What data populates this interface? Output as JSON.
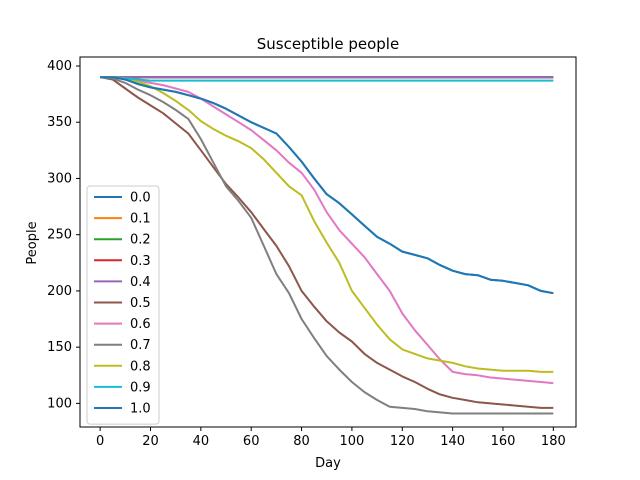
{
  "chart_data": {
    "type": "line",
    "title": "Susceptible people",
    "xlabel": "Day",
    "ylabel": "People",
    "xlim": [
      -8,
      189
    ],
    "ylim": [
      79,
      408
    ],
    "xticks": [
      0,
      20,
      40,
      60,
      80,
      100,
      120,
      140,
      160,
      180
    ],
    "yticks": [
      100,
      150,
      200,
      250,
      300,
      350,
      400
    ],
    "grid": false,
    "legend_position": "left",
    "series": [
      {
        "name": "0.0",
        "color": "#1f77b4",
        "x": [
          0,
          5,
          10,
          15,
          20,
          25,
          30,
          35,
          40,
          45,
          50,
          55,
          60,
          65,
          70,
          75,
          80,
          85,
          90,
          95,
          100,
          105,
          110,
          115,
          120,
          125,
          130,
          135,
          140,
          145,
          150,
          155,
          160,
          165,
          170,
          175,
          180
        ],
        "y": [
          390,
          390,
          388,
          384,
          381,
          379,
          377,
          374,
          371,
          367,
          362,
          356,
          350,
          345,
          340,
          328,
          315,
          300,
          286,
          278,
          268,
          258,
          248,
          242,
          235,
          232,
          229,
          223,
          218,
          215,
          214,
          210,
          209,
          207,
          205,
          200,
          198
        ]
      },
      {
        "name": "0.1",
        "color": "#ff7f0e",
        "x": [
          0,
          180
        ],
        "y": [
          390,
          390
        ]
      },
      {
        "name": "0.2",
        "color": "#2ca02c",
        "x": [
          0,
          180
        ],
        "y": [
          390,
          390
        ]
      },
      {
        "name": "0.3",
        "color": "#d62728",
        "x": [
          0,
          180
        ],
        "y": [
          390,
          390
        ]
      },
      {
        "name": "0.4",
        "color": "#9467bd",
        "x": [
          0,
          180
        ],
        "y": [
          390,
          390
        ]
      },
      {
        "name": "0.5",
        "color": "#8c564b",
        "x": [
          0,
          5,
          10,
          15,
          20,
          25,
          30,
          35,
          40,
          45,
          50,
          55,
          60,
          65,
          70,
          75,
          80,
          85,
          90,
          95,
          100,
          105,
          110,
          115,
          120,
          125,
          130,
          135,
          140,
          145,
          150,
          155,
          160,
          165,
          170,
          175,
          180
        ],
        "y": [
          390,
          388,
          380,
          372,
          365,
          358,
          349,
          340,
          325,
          310,
          295,
          283,
          270,
          255,
          240,
          222,
          200,
          186,
          173,
          163,
          155,
          144,
          136,
          130,
          124,
          119,
          113,
          108,
          105,
          103,
          101,
          100,
          99,
          98,
          97,
          96,
          96
        ]
      },
      {
        "name": "0.6",
        "color": "#e377c2",
        "x": [
          0,
          5,
          10,
          15,
          20,
          25,
          30,
          35,
          40,
          45,
          50,
          55,
          60,
          65,
          70,
          75,
          80,
          85,
          90,
          95,
          100,
          105,
          110,
          115,
          120,
          125,
          130,
          135,
          140,
          145,
          150,
          155,
          160,
          165,
          170,
          175,
          180
        ],
        "y": [
          390,
          390,
          389,
          387,
          385,
          383,
          380,
          377,
          371,
          364,
          357,
          350,
          343,
          334,
          325,
          314,
          305,
          290,
          270,
          254,
          242,
          230,
          215,
          200,
          180,
          165,
          152,
          139,
          128,
          126,
          125,
          123,
          122,
          121,
          120,
          119,
          118
        ]
      },
      {
        "name": "0.7",
        "color": "#7f7f7f",
        "x": [
          0,
          5,
          10,
          15,
          20,
          25,
          30,
          35,
          40,
          45,
          50,
          55,
          60,
          65,
          70,
          75,
          80,
          85,
          90,
          95,
          100,
          105,
          110,
          115,
          120,
          125,
          130,
          135,
          140,
          145,
          150,
          155,
          160,
          165,
          170,
          175,
          180
        ],
        "y": [
          390,
          389,
          385,
          379,
          374,
          368,
          361,
          353,
          335,
          314,
          293,
          280,
          265,
          240,
          215,
          198,
          175,
          158,
          142,
          130,
          119,
          110,
          103,
          97,
          96,
          95,
          93,
          92,
          91,
          91,
          91,
          91,
          91,
          91,
          91,
          91,
          91
        ]
      },
      {
        "name": "0.8",
        "color": "#bcbd22",
        "x": [
          0,
          5,
          10,
          15,
          20,
          25,
          30,
          35,
          40,
          45,
          50,
          55,
          60,
          65,
          70,
          75,
          80,
          85,
          90,
          95,
          100,
          105,
          110,
          115,
          120,
          125,
          130,
          135,
          140,
          145,
          150,
          155,
          160,
          165,
          170,
          175,
          180
        ],
        "y": [
          390,
          390,
          389,
          386,
          382,
          376,
          369,
          361,
          351,
          344,
          338,
          333,
          327,
          317,
          305,
          293,
          285,
          262,
          243,
          225,
          200,
          185,
          170,
          157,
          148,
          144,
          140,
          138,
          136,
          133,
          131,
          130,
          129,
          129,
          129,
          128,
          128
        ]
      },
      {
        "name": "0.9",
        "color": "#17becf",
        "x": [
          0,
          5,
          10,
          15,
          20,
          180
        ],
        "y": [
          390,
          390,
          389,
          388,
          387,
          387
        ]
      },
      {
        "name": "1.0",
        "color": "#1f77b4",
        "x": [
          0,
          5,
          10,
          15,
          20,
          25,
          30,
          35,
          40,
          45,
          50,
          55,
          60,
          65,
          70,
          75,
          80,
          85,
          90,
          95,
          100,
          105,
          110,
          115,
          120,
          125,
          130,
          135,
          140,
          145,
          150,
          155,
          160,
          165,
          170,
          175,
          180
        ],
        "y": [
          390,
          390,
          388,
          384,
          381,
          379,
          377,
          374,
          371,
          367,
          362,
          356,
          350,
          345,
          340,
          328,
          315,
          300,
          286,
          278,
          268,
          258,
          248,
          242,
          235,
          232,
          229,
          223,
          218,
          215,
          214,
          210,
          209,
          207,
          205,
          200,
          198
        ]
      }
    ]
  }
}
